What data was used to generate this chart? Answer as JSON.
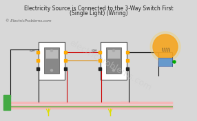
{
  "title_line1": "Electricity Source is Connected to the 3-Way Switch First",
  "title_line2": "(Single Light) (Wiring)",
  "watermark": "ElectricProblems.com",
  "copyright": "© ElectricProblems.com",
  "bg_color": "#d8d8d8",
  "switch_box_color": "#ffffff",
  "switch_face_color": "#888888",
  "switch_toggle_color": "#cccccc",
  "wire_black": "#111111",
  "wire_red": "#cc0000",
  "wire_white": "#eeeeee",
  "wire_green": "#00aa00",
  "cable_jacket_color": "#f5b8b8",
  "source_box_color": "#44aa44",
  "title_fontsize": 5.5,
  "copyright_fontsize": 4.0
}
